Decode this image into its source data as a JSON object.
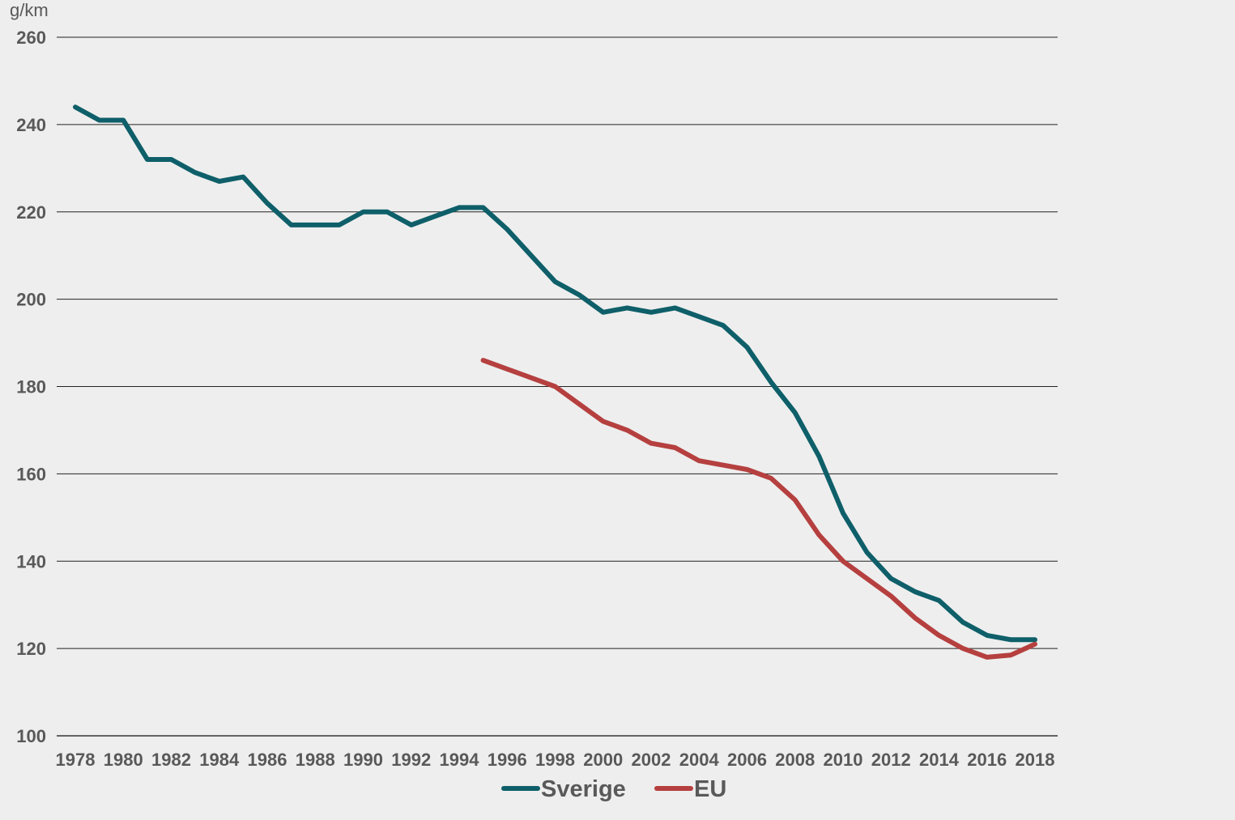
{
  "chart_data": {
    "type": "line",
    "ylabel": "g/km",
    "ylim": [
      100,
      260
    ],
    "yticks": [
      100,
      120,
      140,
      160,
      180,
      200,
      220,
      240,
      260
    ],
    "xlim": [
      1978,
      2018
    ],
    "xticks": [
      1978,
      1980,
      1982,
      1984,
      1986,
      1988,
      1990,
      1992,
      1994,
      1996,
      1998,
      2000,
      2002,
      2004,
      2006,
      2008,
      2010,
      2012,
      2014,
      2016,
      2018
    ],
    "grid": true,
    "legend_position": "bottom",
    "series": [
      {
        "name": "Sverige",
        "color": "#0e5f69",
        "x": [
          1978,
          1979,
          1980,
          1981,
          1982,
          1983,
          1984,
          1985,
          1986,
          1987,
          1988,
          1989,
          1990,
          1991,
          1992,
          1993,
          1994,
          1995,
          1996,
          1997,
          1998,
          1999,
          2000,
          2001,
          2002,
          2003,
          2004,
          2005,
          2006,
          2007,
          2008,
          2009,
          2010,
          2011,
          2012,
          2013,
          2014,
          2015,
          2016,
          2017,
          2018
        ],
        "values": [
          244,
          241,
          241,
          232,
          232,
          229,
          227,
          228,
          222,
          217,
          217,
          217,
          220,
          220,
          217,
          219,
          221,
          221,
          216,
          210,
          204,
          201,
          197,
          198,
          197,
          198,
          196,
          194,
          189,
          181,
          174,
          164,
          151,
          142,
          136,
          133,
          131,
          126,
          123,
          122,
          122
        ]
      },
      {
        "name": "EU",
        "color": "#b5403f",
        "x": [
          1995,
          1996,
          1997,
          1998,
          1999,
          2000,
          2001,
          2002,
          2003,
          2004,
          2005,
          2006,
          2007,
          2008,
          2009,
          2010,
          2011,
          2012,
          2013,
          2014,
          2015,
          2016,
          2017,
          2018
        ],
        "values": [
          186,
          184,
          182,
          180,
          176,
          172,
          170,
          167,
          166,
          163,
          162,
          161,
          159,
          154,
          146,
          140,
          136,
          132,
          127,
          123,
          120,
          118,
          118.5,
          121
        ]
      }
    ]
  }
}
